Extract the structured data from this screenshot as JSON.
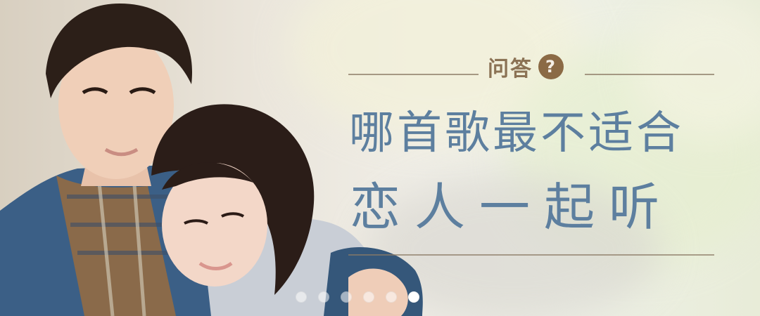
{
  "banner": {
    "qa_label": "问答",
    "qa_icon": "question-mark-icon",
    "headline_line1": "哪首歌最不适合",
    "headline_line2": "恋人一起听",
    "colors": {
      "headline": "#5d7f9f",
      "qa_text": "#8b7254",
      "divider": "#8c7b66"
    }
  },
  "carousel": {
    "dots": 6,
    "active_index": 5
  }
}
